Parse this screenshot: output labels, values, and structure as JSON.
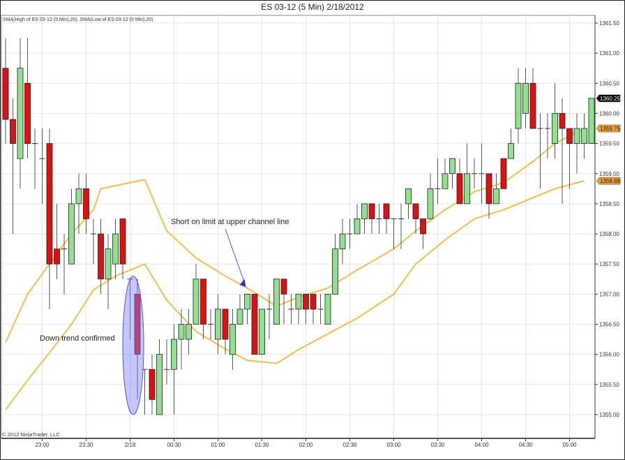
{
  "chart_data": {
    "type": "candlestick",
    "title": "ES 03-12 (5 Min)  2/18/2012",
    "indicator_label": "SMA(High of ES 03-12 (5 Min),20), SMA(Low of ES 03-12 (5 Min),20)",
    "copyright": "© 2012 NinjaTrader, LLC",
    "ylim": [
      1354.8,
      1361.7
    ],
    "y_ticks": [
      "1361.50",
      "1361.00",
      "1360.50",
      "1360.00",
      "1359.50",
      "1359.00",
      "1358.50",
      "1358.00",
      "1357.50",
      "1357.00",
      "1356.50",
      "1356.00",
      "1355.50",
      "1355.00"
    ],
    "x_ticks": [
      "23:00",
      "23:30",
      "2/18",
      "00:30",
      "01:00",
      "01:30",
      "02:00",
      "02:30",
      "03:00",
      "03:30",
      "04:00",
      "04:30",
      "05:00"
    ],
    "grid": true,
    "colors": {
      "up": "#90e090",
      "down": "#dd1111",
      "sma": "#f0c050",
      "ellipse": "#8080ff",
      "arrow": "#2233dd",
      "last_price_tag": "#000000",
      "sma_tag": "#f0a030"
    },
    "bars_columns": [
      "time",
      "open",
      "high",
      "low",
      "close"
    ],
    "bars": [
      [
        "22:35",
        1360.75,
        1361.25,
        1359.5,
        1359.9
      ],
      [
        "22:40",
        1359.9,
        1360.25,
        1358.0,
        1359.5
      ],
      [
        "22:45",
        1359.25,
        1361.25,
        1358.75,
        1360.75
      ],
      [
        "22:50",
        1360.5,
        1361.25,
        1359.25,
        1359.5
      ],
      [
        "22:55",
        1359.5,
        1359.75,
        1358.75,
        1359.5
      ],
      [
        "23:00",
        1359.25,
        1359.75,
        1358.5,
        1359.25
      ],
      [
        "23:05",
        1359.5,
        1359.75,
        1356.75,
        1357.5
      ],
      [
        "23:10",
        1357.75,
        1358.5,
        1357.25,
        1357.5
      ],
      [
        "23:15",
        1357.75,
        1358.0,
        1357.0,
        1357.75
      ],
      [
        "23:20",
        1357.5,
        1358.75,
        1357.5,
        1358.5
      ],
      [
        "23:25",
        1358.5,
        1359.0,
        1358.0,
        1358.75
      ],
      [
        "23:30",
        1358.75,
        1359.0,
        1358.0,
        1358.25
      ],
      [
        "23:35",
        1358.0,
        1358.25,
        1357.5,
        1358.0
      ],
      [
        "23:40",
        1358.0,
        1358.25,
        1357.0,
        1357.25
      ],
      [
        "23:45",
        1357.25,
        1358.0,
        1356.75,
        1357.75
      ],
      [
        "23:50",
        1357.5,
        1358.25,
        1357.25,
        1358.0
      ],
      [
        "23:55",
        1358.25,
        1358.25,
        1357.25,
        1357.5
      ],
      [
        "00:00",
        1357.25,
        1357.25,
        1356.25,
        1357.25
      ],
      [
        "00:05",
        1357.0,
        1357.25,
        1355.25,
        1356.0
      ],
      [
        "00:10",
        1355.75,
        1355.75,
        1355.0,
        1355.75
      ],
      [
        "00:15",
        1355.75,
        1356.0,
        1355.0,
        1355.25
      ],
      [
        "00:20",
        1355.0,
        1356.25,
        1355.0,
        1356.0
      ],
      [
        "00:25",
        1355.75,
        1356.25,
        1355.5,
        1355.75
      ],
      [
        "00:30",
        1355.75,
        1356.5,
        1355.0,
        1356.25
      ],
      [
        "00:35",
        1356.25,
        1356.75,
        1355.75,
        1356.5
      ],
      [
        "00:40",
        1356.25,
        1356.75,
        1356.0,
        1356.5
      ],
      [
        "00:45",
        1356.5,
        1357.5,
        1356.5,
        1357.25
      ],
      [
        "00:50",
        1357.25,
        1357.25,
        1356.25,
        1356.5
      ],
      [
        "00:55",
        1356.5,
        1356.75,
        1356.25,
        1356.5
      ],
      [
        "01:00",
        1356.25,
        1357.0,
        1356.0,
        1356.75
      ],
      [
        "01:05",
        1356.75,
        1356.75,
        1356.0,
        1356.25
      ],
      [
        "01:10",
        1356.0,
        1356.75,
        1355.75,
        1356.5
      ],
      [
        "01:15",
        1356.5,
        1357.0,
        1356.5,
        1356.75
      ],
      [
        "01:20",
        1356.75,
        1357.0,
        1356.5,
        1357.0
      ],
      [
        "01:25",
        1357.0,
        1357.0,
        1356.0,
        1356.0
      ],
      [
        "01:30",
        1356.0,
        1356.75,
        1356.0,
        1356.75
      ],
      [
        "01:35",
        1356.75,
        1357.0,
        1356.25,
        1356.75
      ],
      [
        "01:40",
        1356.5,
        1357.25,
        1356.5,
        1357.25
      ],
      [
        "01:45",
        1357.25,
        1357.25,
        1356.5,
        1357.0
      ],
      [
        "01:50",
        1356.75,
        1357.0,
        1356.5,
        1356.75
      ],
      [
        "01:55",
        1356.75,
        1357.0,
        1356.5,
        1357.0
      ],
      [
        "02:00",
        1357.0,
        1357.0,
        1356.5,
        1356.75
      ],
      [
        "02:05",
        1357.0,
        1357.0,
        1356.5,
        1356.75
      ],
      [
        "02:10",
        1356.75,
        1357.0,
        1356.5,
        1356.75
      ],
      [
        "02:15",
        1356.5,
        1357.0,
        1356.5,
        1357.0
      ],
      [
        "02:20",
        1357.0,
        1358.0,
        1357.0,
        1357.75
      ],
      [
        "02:25",
        1357.75,
        1358.25,
        1357.5,
        1358.0
      ],
      [
        "02:30",
        1358.0,
        1358.25,
        1357.75,
        1358.0
      ],
      [
        "02:35",
        1358.0,
        1358.5,
        1358.0,
        1358.25
      ],
      [
        "02:40",
        1358.25,
        1358.5,
        1358.0,
        1358.5
      ],
      [
        "02:45",
        1358.5,
        1358.5,
        1358.0,
        1358.25
      ],
      [
        "02:50",
        1358.25,
        1358.5,
        1358.0,
        1358.25
      ],
      [
        "02:55",
        1358.5,
        1358.5,
        1358.0,
        1358.25
      ],
      [
        "03:00",
        1358.25,
        1358.25,
        1357.75,
        1358.25
      ],
      [
        "03:05",
        1358.25,
        1358.5,
        1357.75,
        1358.25
      ],
      [
        "03:10",
        1358.5,
        1358.75,
        1358.25,
        1358.75
      ],
      [
        "03:15",
        1358.5,
        1358.5,
        1358.0,
        1358.25
      ],
      [
        "03:20",
        1358.25,
        1358.25,
        1357.75,
        1358.0
      ],
      [
        "03:25",
        1358.25,
        1359.0,
        1358.25,
        1358.75
      ],
      [
        "03:30",
        1358.75,
        1359.25,
        1358.5,
        1358.75
      ],
      [
        "03:35",
        1358.75,
        1359.25,
        1358.75,
        1359.0
      ],
      [
        "03:40",
        1359.0,
        1359.25,
        1358.75,
        1359.25
      ],
      [
        "03:45",
        1359.0,
        1359.25,
        1358.5,
        1358.5
      ],
      [
        "03:50",
        1358.5,
        1359.5,
        1358.5,
        1359.0
      ],
      [
        "03:55",
        1359.0,
        1359.25,
        1358.75,
        1359.0
      ],
      [
        "04:00",
        1359.0,
        1359.5,
        1358.5,
        1359.0
      ],
      [
        "04:05",
        1359.0,
        1359.0,
        1358.25,
        1358.5
      ],
      [
        "04:10",
        1358.5,
        1359.0,
        1358.5,
        1358.75
      ],
      [
        "04:15",
        1359.25,
        1359.25,
        1358.75,
        1358.75
      ],
      [
        "04:20",
        1359.25,
        1359.75,
        1359.25,
        1359.5
      ],
      [
        "04:25",
        1359.75,
        1360.75,
        1359.5,
        1360.5
      ],
      [
        "04:30",
        1360.0,
        1360.75,
        1359.75,
        1360.5
      ],
      [
        "04:35",
        1360.5,
        1360.75,
        1359.75,
        1359.75
      ],
      [
        "04:40",
        1359.75,
        1360.0,
        1358.75,
        1359.75
      ],
      [
        "04:45",
        1359.75,
        1360.0,
        1359.25,
        1359.75
      ],
      [
        "04:50",
        1359.5,
        1360.5,
        1359.25,
        1360.0
      ],
      [
        "04:55",
        1360.0,
        1360.25,
        1358.5,
        1359.75
      ],
      [
        "05:00",
        1359.75,
        1359.75,
        1358.75,
        1359.5
      ],
      [
        "05:05",
        1359.5,
        1360.0,
        1359.0,
        1359.75
      ],
      [
        "05:10",
        1359.5,
        1360.0,
        1359.25,
        1359.75
      ],
      [
        "05:15",
        1359.5,
        1360.25,
        1359.5,
        1360.25
      ]
    ],
    "sma_high": [
      [
        "22:35",
        1356.2
      ],
      [
        "22:50",
        1357.0
      ],
      [
        "23:05",
        1357.5
      ],
      [
        "23:20",
        1358.0
      ],
      [
        "23:35",
        1358.4
      ],
      [
        "23:40",
        1358.75
      ],
      [
        "23:50",
        1358.8
      ],
      [
        "00:10",
        1358.9
      ],
      [
        "00:25",
        1358.05
      ],
      [
        "00:45",
        1357.6
      ],
      [
        "01:05",
        1357.3
      ],
      [
        "01:20",
        1357.1
      ],
      [
        "01:40",
        1356.8
      ],
      [
        "01:55",
        1356.95
      ],
      [
        "02:15",
        1357.1
      ],
      [
        "02:35",
        1357.4
      ],
      [
        "03:00",
        1357.75
      ],
      [
        "03:15",
        1358.05
      ],
      [
        "03:35",
        1358.4
      ],
      [
        "03:55",
        1358.7
      ],
      [
        "04:15",
        1358.85
      ],
      [
        "04:35",
        1359.2
      ],
      [
        "04:50",
        1359.5
      ],
      [
        "05:10",
        1359.75
      ]
    ],
    "sma_low": [
      [
        "22:35",
        1355.08
      ],
      [
        "22:50",
        1355.57
      ],
      [
        "23:05",
        1356.03
      ],
      [
        "23:20",
        1356.5
      ],
      [
        "23:35",
        1357.07
      ],
      [
        "23:50",
        1357.3
      ],
      [
        "00:10",
        1357.5
      ],
      [
        "00:25",
        1356.9
      ],
      [
        "00:45",
        1356.38
      ],
      [
        "01:05",
        1356.09
      ],
      [
        "01:20",
        1355.9
      ],
      [
        "01:40",
        1355.85
      ],
      [
        "01:55",
        1356.08
      ],
      [
        "02:15",
        1356.34
      ],
      [
        "02:35",
        1356.6
      ],
      [
        "03:00",
        1357.0
      ],
      [
        "03:15",
        1357.5
      ],
      [
        "03:35",
        1357.9
      ],
      [
        "03:55",
        1358.25
      ],
      [
        "04:15",
        1358.4
      ],
      [
        "04:35",
        1358.6
      ],
      [
        "04:50",
        1358.75
      ],
      [
        "05:10",
        1358.88
      ]
    ],
    "price_tags": [
      {
        "value": "1360.25",
        "kind": "last"
      },
      {
        "value": "1359.75",
        "kind": "sma"
      },
      {
        "value": "1358.88",
        "kind": "sma"
      }
    ],
    "annotations": [
      {
        "text": "Short on limit at upper channel line",
        "target_time": "01:20",
        "target_price": 1357.05
      },
      {
        "text": "Down trend confirmed",
        "highlight_time": "00:05",
        "highlight_range": [
          1355.0,
          1357.3
        ]
      }
    ]
  }
}
